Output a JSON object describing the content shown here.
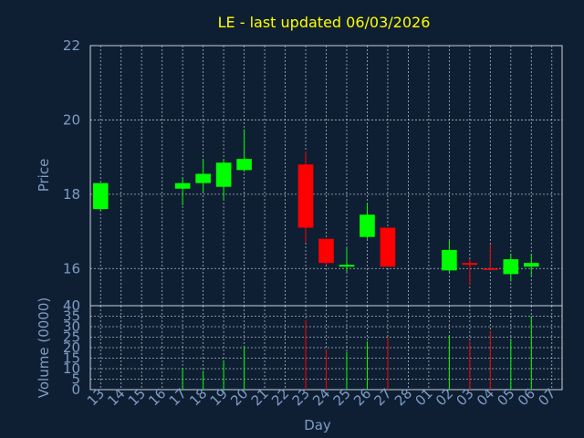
{
  "title": "LE - last updated 06/03/2026",
  "colors": {
    "background": "#0f1f33",
    "plot_border": "#c8d0da",
    "grid": "#c8d0da",
    "up": "#00ff00",
    "down": "#ff0000",
    "text": "#7f9cc5",
    "title": "#ffff00"
  },
  "chart_data": [
    {
      "type": "candlestick",
      "ylabel": "Price",
      "ylim": [
        15,
        22
      ],
      "yticks": [
        16,
        18,
        20,
        22
      ],
      "grid": true,
      "categories": [
        "13",
        "14",
        "15",
        "16",
        "17",
        "18",
        "19",
        "20",
        "21",
        "22",
        "23",
        "24",
        "25",
        "26",
        "27",
        "28",
        "01",
        "02",
        "03",
        "04",
        "05",
        "06",
        "07"
      ],
      "candles": [
        {
          "x": "13",
          "open": 17.6,
          "high": 18.3,
          "low": 17.55,
          "close": 18.3
        },
        {
          "x": "17",
          "open": 18.15,
          "high": 18.45,
          "low": 17.7,
          "close": 18.3
        },
        {
          "x": "18",
          "open": 18.3,
          "high": 18.95,
          "low": 18.05,
          "close": 18.55
        },
        {
          "x": "19",
          "open": 18.2,
          "high": 18.95,
          "low": 17.85,
          "close": 18.85
        },
        {
          "x": "20",
          "open": 18.65,
          "high": 19.75,
          "low": 18.6,
          "close": 18.95
        },
        {
          "x": "23",
          "open": 18.8,
          "high": 19.15,
          "low": 16.7,
          "close": 17.1
        },
        {
          "x": "24",
          "open": 16.8,
          "high": 16.8,
          "low": 16.1,
          "close": 16.15
        },
        {
          "x": "25",
          "open": 16.05,
          "high": 16.55,
          "low": 15.9,
          "close": 16.1
        },
        {
          "x": "26",
          "open": 16.85,
          "high": 17.75,
          "low": 16.8,
          "close": 17.45
        },
        {
          "x": "27",
          "open": 17.1,
          "high": 17.1,
          "low": 16.05,
          "close": 16.05
        },
        {
          "x": "02",
          "open": 15.95,
          "high": 16.75,
          "low": 15.9,
          "close": 16.5
        },
        {
          "x": "03",
          "open": 16.15,
          "high": 16.25,
          "low": 15.55,
          "close": 16.1
        },
        {
          "x": "04",
          "open": 16.0,
          "high": 16.65,
          "low": 15.95,
          "close": 15.98
        },
        {
          "x": "05",
          "open": 15.85,
          "high": 16.4,
          "low": 15.65,
          "close": 16.25
        },
        {
          "x": "06",
          "open": 16.05,
          "high": 16.4,
          "low": 15.8,
          "close": 16.15
        }
      ]
    },
    {
      "type": "bar",
      "xlabel": "Day",
      "ylabel": "Volume (0000)",
      "ylim": [
        0,
        40
      ],
      "yticks": [
        0,
        5,
        10,
        15,
        20,
        25,
        30,
        35,
        40
      ],
      "grid": true,
      "bars": [
        {
          "x": "17",
          "value": 10,
          "direction": "up"
        },
        {
          "x": "18",
          "value": 9,
          "direction": "up"
        },
        {
          "x": "19",
          "value": 14,
          "direction": "up"
        },
        {
          "x": "20",
          "value": 21,
          "direction": "up"
        },
        {
          "x": "23",
          "value": 33,
          "direction": "down"
        },
        {
          "x": "24",
          "value": 19,
          "direction": "down"
        },
        {
          "x": "25",
          "value": 18,
          "direction": "up"
        },
        {
          "x": "26",
          "value": 23,
          "direction": "up"
        },
        {
          "x": "27",
          "value": 25,
          "direction": "down"
        },
        {
          "x": "02",
          "value": 26,
          "direction": "up"
        },
        {
          "x": "03",
          "value": 23,
          "direction": "down"
        },
        {
          "x": "04",
          "value": 28,
          "direction": "down"
        },
        {
          "x": "05",
          "value": 24,
          "direction": "up"
        },
        {
          "x": "06",
          "value": 35,
          "direction": "up"
        }
      ]
    }
  ]
}
